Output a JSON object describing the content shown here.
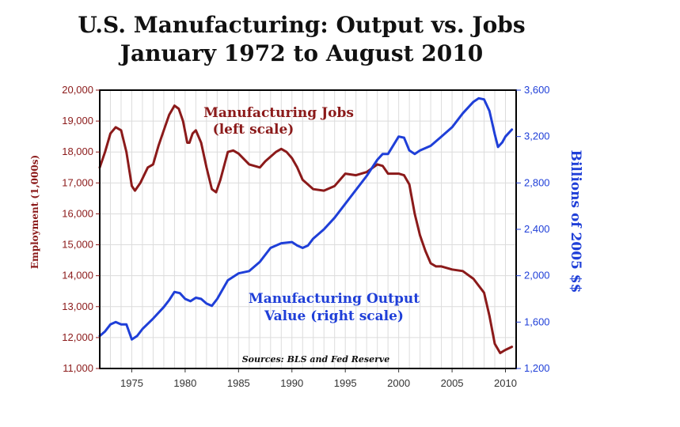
{
  "chart_data": {
    "type": "line",
    "title": "U.S. Manufacturing: Output vs. Jobs",
    "subtitle": "January 1972 to August 2010",
    "ylabel_left": "Employment (1,000s)",
    "ylabel_right": "Billions of 2005 $$",
    "source": "Sources: BLS and Fed Reserve",
    "xlim": [
      1972.0,
      2011.0
    ],
    "ylim_left": [
      11000,
      20000
    ],
    "ylim_right": [
      1200,
      3600
    ],
    "x_ticks": [
      1975,
      1980,
      1985,
      1990,
      1995,
      2000,
      2005,
      2010
    ],
    "y_ticks_left": [
      11000,
      12000,
      13000,
      14000,
      15000,
      16000,
      17000,
      18000,
      19000,
      20000
    ],
    "y_ticks_left_labels": [
      "11,000",
      "12,000",
      "13,000",
      "14,000",
      "15,000",
      "16,000",
      "17,000",
      "18,000",
      "19,000",
      "20,000"
    ],
    "y_ticks_right": [
      1200,
      1600,
      2000,
      2400,
      2800,
      3200,
      3600
    ],
    "y_ticks_right_labels": [
      "1,200",
      "1,600",
      "2,000",
      "2,400",
      "2,800",
      "3,200",
      "3,600"
    ],
    "grid": true,
    "series": [
      {
        "name": "Manufacturing Jobs",
        "label_lines": [
          "Manufacturing Jobs",
          "(left scale)"
        ],
        "axis": "left",
        "color": "#8b1a1a",
        "x": [
          1972.0,
          1972.5,
          1973.0,
          1973.5,
          1974.0,
          1974.5,
          1975.0,
          1975.3,
          1975.8,
          1976.5,
          1977.0,
          1977.5,
          1978.0,
          1978.5,
          1979.0,
          1979.4,
          1979.8,
          1980.2,
          1980.4,
          1980.7,
          1981.0,
          1981.5,
          1982.0,
          1982.5,
          1982.9,
          1983.3,
          1984.0,
          1984.5,
          1985.0,
          1986.0,
          1987.0,
          1987.5,
          1988.0,
          1988.5,
          1989.0,
          1989.5,
          1990.0,
          1990.5,
          1991.0,
          1991.5,
          1992.0,
          1993.0,
          1994.0,
          1995.0,
          1996.0,
          1997.0,
          1998.0,
          1998.5,
          1999.0,
          2000.0,
          2000.5,
          2001.0,
          2001.5,
          2002.0,
          2002.5,
          2003.0,
          2003.5,
          2004.0,
          2005.0,
          2006.0,
          2007.0,
          2008.0,
          2008.5,
          2009.0,
          2009.5,
          2010.0,
          2010.6
        ],
        "values": [
          17500,
          18000,
          18600,
          18800,
          18700,
          18000,
          16900,
          16750,
          17000,
          17500,
          17600,
          18200,
          18700,
          19200,
          19500,
          19400,
          19000,
          18300,
          18300,
          18600,
          18700,
          18300,
          17500,
          16800,
          16700,
          17100,
          18000,
          18050,
          17950,
          17600,
          17500,
          17700,
          17850,
          18000,
          18100,
          18000,
          17800,
          17500,
          17100,
          16950,
          16800,
          16750,
          16900,
          17300,
          17250,
          17350,
          17600,
          17550,
          17300,
          17300,
          17250,
          16950,
          16000,
          15300,
          14800,
          14400,
          14300,
          14300,
          14200,
          14150,
          13900,
          13450,
          12700,
          11800,
          11500,
          11600,
          11700
        ]
      },
      {
        "name": "Manufacturing Output Value",
        "label_lines": [
          "Manufacturing Output",
          "Value (right scale)"
        ],
        "axis": "right",
        "color": "#1f3fd8",
        "x": [
          1972.0,
          1972.5,
          1973.0,
          1973.5,
          1974.0,
          1974.5,
          1975.0,
          1975.5,
          1976.0,
          1977.0,
          1978.0,
          1978.5,
          1979.0,
          1979.5,
          1980.0,
          1980.5,
          1981.0,
          1981.5,
          1982.0,
          1982.5,
          1983.0,
          1984.0,
          1985.0,
          1986.0,
          1987.0,
          1988.0,
          1989.0,
          1990.0,
          1990.5,
          1991.0,
          1991.5,
          1992.0,
          1993.0,
          1994.0,
          1995.0,
          1996.0,
          1997.0,
          1998.0,
          1998.5,
          1999.0,
          2000.0,
          2000.5,
          2001.0,
          2001.5,
          2002.0,
          2003.0,
          2004.0,
          2005.0,
          2006.0,
          2007.0,
          2007.5,
          2008.0,
          2008.5,
          2009.0,
          2009.3,
          2009.7,
          2010.0,
          2010.6
        ],
        "values": [
          1480,
          1520,
          1580,
          1600,
          1580,
          1580,
          1450,
          1480,
          1540,
          1630,
          1730,
          1790,
          1860,
          1850,
          1800,
          1780,
          1810,
          1800,
          1760,
          1740,
          1800,
          1960,
          2020,
          2040,
          2120,
          2240,
          2280,
          2290,
          2260,
          2240,
          2260,
          2320,
          2400,
          2500,
          2620,
          2740,
          2860,
          3000,
          3050,
          3050,
          3200,
          3190,
          3080,
          3050,
          3080,
          3120,
          3200,
          3280,
          3400,
          3500,
          3530,
          3520,
          3420,
          3220,
          3110,
          3150,
          3200,
          3260
        ]
      }
    ]
  }
}
